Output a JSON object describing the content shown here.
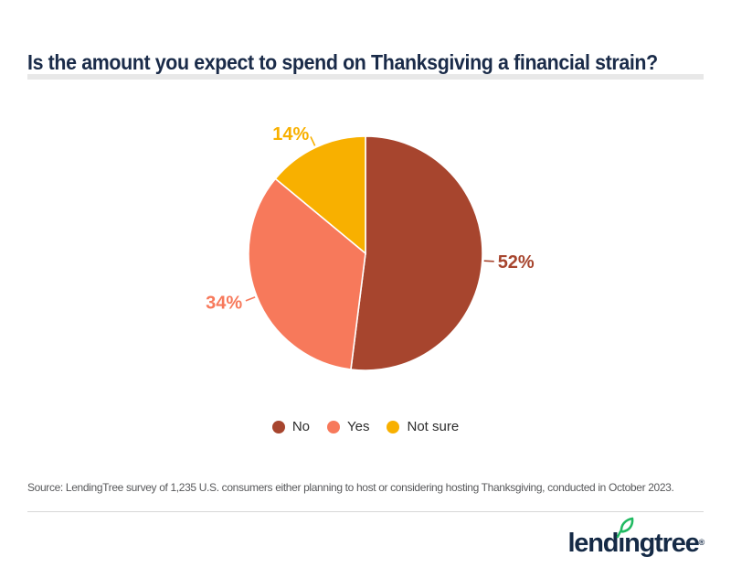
{
  "page": {
    "title": "Is the amount you expect to spend on Thanksgiving a financial strain?",
    "source_note": "Source: LendingTree survey of 1,235 U.S. consumers either planning to host or considering hosting Thanksgiving, conducted in October 2023.",
    "brand": {
      "logo_text": "lendıngtree",
      "trademark": "®",
      "navy": "#152A46",
      "green": "#21BA62"
    }
  },
  "chart_data": {
    "type": "pie",
    "title": "Is the amount you expect to spend on Thanksgiving a financial strain?",
    "start_angle_deg": 0,
    "direction": "clockwise",
    "legend_position": "bottom",
    "slices": [
      {
        "label": "No",
        "value": 52,
        "display": "52%",
        "color": "#A7452E"
      },
      {
        "label": "Yes",
        "value": 34,
        "display": "34%",
        "color": "#F7795B"
      },
      {
        "label": "Not sure",
        "value": 14,
        "display": "14%",
        "color": "#F8B000"
      }
    ]
  }
}
